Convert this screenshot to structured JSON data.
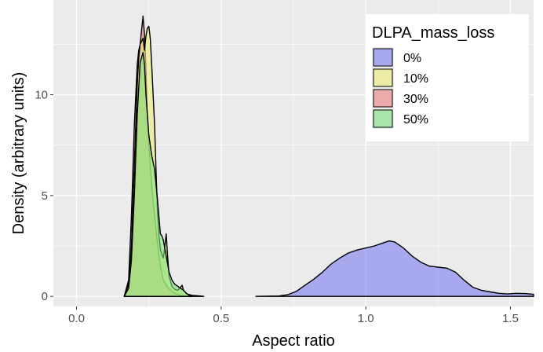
{
  "chart_data": {
    "type": "area",
    "title": "",
    "xlabel": "Aspect ratio",
    "ylabel": "Density (arbitrary units)",
    "xlim": [
      -0.08,
      1.58
    ],
    "ylim": [
      -0.5,
      14.7
    ],
    "x_ticks": [
      0.0,
      0.5,
      1.0,
      1.5
    ],
    "x_tick_labels": [
      "0.0",
      "0.5",
      "1.0",
      "1.5"
    ],
    "y_ticks": [
      0,
      5,
      10
    ],
    "y_tick_labels": [
      "0",
      "5",
      "10"
    ],
    "grid": true,
    "legend": {
      "title": "DLPA_mass_loss",
      "position": "top-right"
    },
    "colors": {
      "panel_bg": "#ebebeb",
      "grid": "#ffffff",
      "outline": "#000000",
      "0%": "#7b7bf2",
      "10%": "#ecec78",
      "30%": "#ec8080",
      "50%": "#7fe27f"
    },
    "series": [
      {
        "name": "0%",
        "x": [
          0.62,
          0.7,
          0.73,
          0.76,
          0.79,
          0.82,
          0.85,
          0.88,
          0.91,
          0.94,
          0.97,
          1.0,
          1.03,
          1.06,
          1.08,
          1.1,
          1.13,
          1.16,
          1.19,
          1.22,
          1.25,
          1.28,
          1.31,
          1.34,
          1.37,
          1.4,
          1.43,
          1.46,
          1.49,
          1.52,
          1.55,
          1.58
        ],
        "y": [
          0.0,
          0.02,
          0.08,
          0.25,
          0.55,
          0.85,
          1.2,
          1.6,
          1.9,
          2.15,
          2.3,
          2.4,
          2.5,
          2.65,
          2.75,
          2.7,
          2.4,
          2.0,
          1.7,
          1.5,
          1.45,
          1.4,
          1.2,
          0.8,
          0.45,
          0.3,
          0.22,
          0.15,
          0.12,
          0.15,
          0.14,
          0.1
        ]
      },
      {
        "name": "30%",
        "x": [
          0.165,
          0.18,
          0.19,
          0.2,
          0.21,
          0.215,
          0.22,
          0.225,
          0.23,
          0.235,
          0.24,
          0.245,
          0.25,
          0.26,
          0.27,
          0.28,
          0.29,
          0.3,
          0.32,
          0.34,
          0.36,
          0.38
        ],
        "y": [
          0.0,
          0.8,
          4.0,
          8.5,
          11.5,
          12.2,
          12.5,
          13.2,
          13.9,
          13.0,
          11.2,
          9.0,
          7.5,
          5.5,
          4.0,
          2.6,
          1.5,
          0.8,
          0.35,
          0.15,
          0.05,
          0.0
        ]
      },
      {
        "name": "10%",
        "x": [
          0.165,
          0.18,
          0.19,
          0.2,
          0.21,
          0.215,
          0.22,
          0.23,
          0.235,
          0.24,
          0.245,
          0.25,
          0.255,
          0.26,
          0.27,
          0.275,
          0.28,
          0.285,
          0.29,
          0.3,
          0.305,
          0.31,
          0.315,
          0.32,
          0.33,
          0.34,
          0.35,
          0.36,
          0.365,
          0.37,
          0.38,
          0.4,
          0.42,
          0.44
        ],
        "y": [
          0.0,
          0.6,
          2.5,
          6.5,
          10.5,
          11.8,
          12.5,
          12.8,
          12.2,
          12.9,
          13.3,
          13.4,
          12.8,
          11.5,
          8.5,
          6.2,
          4.2,
          3.0,
          2.3,
          1.9,
          2.4,
          3.1,
          2.0,
          1.0,
          0.5,
          0.35,
          0.3,
          0.45,
          0.55,
          0.3,
          0.12,
          0.05,
          0.03,
          0.0
        ]
      },
      {
        "name": "50%",
        "x": [
          0.165,
          0.18,
          0.19,
          0.2,
          0.21,
          0.22,
          0.23,
          0.235,
          0.24,
          0.25,
          0.26,
          0.27,
          0.28,
          0.29,
          0.295,
          0.3,
          0.31,
          0.32,
          0.33,
          0.34,
          0.35,
          0.36,
          0.37,
          0.38,
          0.39,
          0.4
        ],
        "y": [
          0.0,
          0.4,
          1.8,
          5.0,
          9.0,
          11.6,
          12.1,
          11.5,
          10.0,
          8.0,
          7.0,
          6.3,
          4.8,
          3.1,
          3.0,
          2.8,
          2.0,
          1.2,
          0.8,
          0.6,
          0.5,
          0.4,
          0.3,
          0.15,
          0.05,
          0.0
        ]
      }
    ]
  }
}
